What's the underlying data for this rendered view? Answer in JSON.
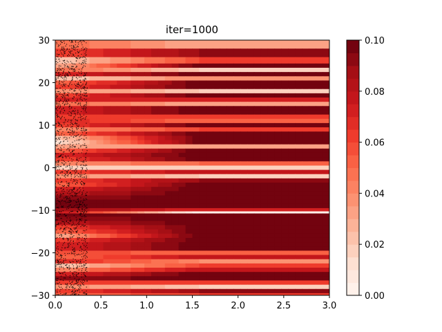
{
  "chart_data": {
    "type": "heatmap",
    "title": "iter=1000",
    "xlabel": "",
    "ylabel": "",
    "xlim": [
      0.0,
      3.0
    ],
    "ylim": [
      -30,
      30
    ],
    "x_ticks": [
      0.0,
      0.5,
      1.0,
      1.5,
      2.0,
      2.5,
      3.0
    ],
    "x_tick_labels": [
      "0.0",
      "0.5",
      "1.0",
      "1.5",
      "2.0",
      "2.5",
      "3.0"
    ],
    "y_ticks": [
      -30,
      -20,
      -10,
      0,
      10,
      20,
      30
    ],
    "y_tick_labels": [
      "−30",
      "−20",
      "−10",
      "0",
      "10",
      "20",
      "30"
    ],
    "colormap": "Reds",
    "colorbar": {
      "range": [
        0.0,
        0.1
      ],
      "levels": 20,
      "ticks": [
        0.0,
        0.02,
        0.04,
        0.06,
        0.08,
        0.1
      ],
      "tick_labels": [
        "0.00",
        "0.02",
        "0.04",
        "0.06",
        "0.08",
        "0.10"
      ]
    },
    "bands_description_note": "",
    "bands": [
      {
        "y": 29,
        "v0": 0.05,
        "v1": 0.03
      },
      {
        "y": 27,
        "v0": 0.06,
        "v1": 0.09
      },
      {
        "y": 25,
        "v0": 0.02,
        "v1": 0.06
      },
      {
        "y": 24,
        "v0": 0.03,
        "v1": 0.1
      },
      {
        "y": 23,
        "v0": 0.05,
        "v1": 0.02
      },
      {
        "y": 22,
        "v0": 0.07,
        "v1": 0.1
      },
      {
        "y": 21,
        "v0": 0.02,
        "v1": 0.04
      },
      {
        "y": 20,
        "v0": 0.05,
        "v1": 0.1
      },
      {
        "y": 19,
        "v0": 0.06,
        "v1": 0.1
      },
      {
        "y": 18,
        "v0": 0.04,
        "v1": 0.02
      },
      {
        "y": 17,
        "v0": 0.06,
        "v1": 0.1
      },
      {
        "y": 16,
        "v0": 0.07,
        "v1": 0.07
      },
      {
        "y": 15,
        "v0": 0.05,
        "v1": 0.03
      },
      {
        "y": 14,
        "v0": 0.07,
        "v1": 0.1
      },
      {
        "y": 13,
        "v0": 0.07,
        "v1": 0.1
      },
      {
        "y": 12,
        "v0": 0.06,
        "v1": 0.06
      },
      {
        "y": 11,
        "v0": 0.07,
        "v1": 0.05
      },
      {
        "y": 10,
        "v0": 0.06,
        "v1": 0.1
      },
      {
        "y": 9,
        "v0": 0.04,
        "v1": 0.06
      },
      {
        "y": 8,
        "v0": 0.05,
        "v1": 0.1
      },
      {
        "y": 7,
        "v0": 0.02,
        "v1": 0.1
      },
      {
        "y": 6,
        "v0": 0.01,
        "v1": 0.1
      },
      {
        "y": 5,
        "v0": 0.03,
        "v1": 0.03
      },
      {
        "y": 4,
        "v0": 0.05,
        "v1": 0.1
      },
      {
        "y": 3,
        "v0": 0.07,
        "v1": 0.1
      },
      {
        "y": 2,
        "v0": 0.06,
        "v1": 0.1
      },
      {
        "y": 1,
        "v0": 0.04,
        "v1": 0.05
      },
      {
        "y": 0,
        "v0": 0.02,
        "v1": 0.02
      },
      {
        "y": -1,
        "v0": 0.06,
        "v1": 0.08
      },
      {
        "y": -2,
        "v0": 0.04,
        "v1": 0.02
      },
      {
        "y": -3,
        "v0": 0.06,
        "v1": 0.09
      },
      {
        "y": -4,
        "v0": 0.05,
        "v1": 0.1
      },
      {
        "y": -5,
        "v0": 0.07,
        "v1": 0.1
      },
      {
        "y": -6,
        "v0": 0.08,
        "v1": 0.1
      },
      {
        "y": -7,
        "v0": 0.09,
        "v1": 0.1
      },
      {
        "y": -8,
        "v0": 0.1,
        "v1": 0.1
      },
      {
        "y": -9,
        "v0": 0.1,
        "v1": 0.1
      },
      {
        "y": -10,
        "v0": 0.09,
        "v1": 0.07
      },
      {
        "y": -10.5,
        "v0": 0.08,
        "v1": 0.0
      },
      {
        "y": -11,
        "v0": 0.1,
        "v1": 0.1
      },
      {
        "y": -12,
        "v0": 0.09,
        "v1": 0.1
      },
      {
        "y": -13,
        "v0": 0.08,
        "v1": 0.1
      },
      {
        "y": -14,
        "v0": 0.06,
        "v1": 0.1
      },
      {
        "y": -15,
        "v0": 0.05,
        "v1": 0.1
      },
      {
        "y": -16,
        "v0": 0.03,
        "v1": 0.1
      },
      {
        "y": -17,
        "v0": 0.06,
        "v1": 0.1
      },
      {
        "y": -18,
        "v0": 0.07,
        "v1": 0.1
      },
      {
        "y": -19,
        "v0": 0.07,
        "v1": 0.1
      },
      {
        "y": -20,
        "v0": 0.06,
        "v1": 0.05
      },
      {
        "y": -21,
        "v0": 0.05,
        "v1": 0.08
      },
      {
        "y": -22,
        "v0": 0.07,
        "v1": 0.04
      },
      {
        "y": -23,
        "v0": 0.02,
        "v1": 0.06
      },
      {
        "y": -24,
        "v0": 0.04,
        "v1": 0.08
      },
      {
        "y": -25,
        "v0": 0.07,
        "v1": 0.1
      },
      {
        "y": -26,
        "v0": 0.09,
        "v1": 0.1
      },
      {
        "y": -27,
        "v0": 0.06,
        "v1": 0.06
      },
      {
        "y": -28,
        "v0": 0.04,
        "v1": 0.02
      },
      {
        "y": -29,
        "v0": 0.06,
        "v1": 0.09
      },
      {
        "y": -30,
        "v0": 0.05,
        "v1": 0.06
      }
    ],
    "points": {
      "x_range": [
        0.0,
        0.35
      ],
      "y_range": [
        -30,
        30
      ],
      "count": 1800,
      "color": "#000000"
    }
  }
}
